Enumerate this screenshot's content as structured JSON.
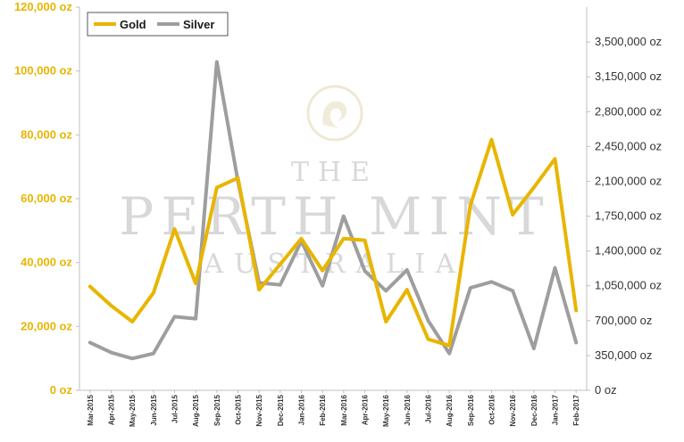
{
  "chart_data": {
    "type": "line",
    "categories": [
      "Mar-2015",
      "Apr-2015",
      "May-2015",
      "Jun-2015",
      "Jul-2015",
      "Aug-2015",
      "Sep-2015",
      "Oct-2015",
      "Nov-2015",
      "Dec-2015",
      "Jan-2016",
      "Feb-2016",
      "Mar-2016",
      "Apr-2016",
      "May-2016",
      "Jun-2016",
      "Jul-2016",
      "Aug-2016",
      "Sep-2016",
      "Oct-2016",
      "Nov-2016",
      "Dec-2016",
      "Jan-2017",
      "Feb-2017"
    ],
    "series": [
      {
        "name": "Gold",
        "color": "#E8B500",
        "axis": "left",
        "values": [
          32500,
          26500,
          21500,
          30500,
          50500,
          33500,
          63500,
          66500,
          31500,
          39500,
          47500,
          37500,
          47500,
          47000,
          21500,
          31500,
          16000,
          14000,
          58000,
          78500,
          55000,
          63500,
          72500,
          25000
        ]
      },
      {
        "name": "Silver",
        "color": "#9E9E9E",
        "axis": "right",
        "values": [
          480000,
          380000,
          320000,
          370000,
          740000,
          720000,
          3300000,
          2100000,
          1080000,
          1060000,
          1500000,
          1050000,
          1750000,
          1200000,
          1000000,
          1210000,
          700000,
          370000,
          1030000,
          1090000,
          1000000,
          420000,
          1230000,
          480000
        ]
      }
    ],
    "y_left": {
      "min": 0,
      "max": 120000,
      "ticks": [
        0,
        20000,
        40000,
        60000,
        80000,
        100000,
        120000
      ],
      "tick_labels": [
        "0 oz",
        "20,000 oz",
        "40,000 oz",
        "60,000 oz",
        "80,000 oz",
        "100,000 oz",
        "120,000 oz"
      ]
    },
    "y_right": {
      "min": 0,
      "max": 3850000,
      "ticks": [
        0,
        350000,
        700000,
        1050000,
        1400000,
        1750000,
        2100000,
        2450000,
        2800000,
        3150000,
        3500000
      ],
      "tick_labels": [
        "0 oz",
        "350,000 oz",
        "700,000 oz",
        "1,050,000 oz",
        "1,400,000 oz",
        "1,750,000 oz",
        "2,100,000 oz",
        "2,450,000 oz",
        "2,800,000 oz",
        "3,150,000 oz",
        "3,500,000 oz"
      ]
    },
    "x_tick_labels": [
      "Mar-2015",
      "Apr-2015",
      "May-2015",
      "Jun-2015",
      "Jul-2015",
      "Aug-2015",
      "Sep-2015",
      "Oct-2015",
      "Nov-2015",
      "Dec-2015",
      "Jan-2016",
      "Feb-2016",
      "Mar-2016",
      "Apr-2016",
      "May-2016",
      "Jun-2016",
      "Jul-2016",
      "Aug-2016",
      "Sep-2016",
      "Oct-2016",
      "Nov-2016",
      "Dec-2016",
      "Jan-2017",
      "Feb-2017"
    ],
    "legend": {
      "placement": "top-left",
      "entries": [
        "Gold",
        "Silver"
      ]
    },
    "grid": false
  },
  "watermark": {
    "line1": "THE",
    "line2": "PERTH MINT",
    "line3": "AUSTRALIA",
    "logo": "swan-logo"
  }
}
